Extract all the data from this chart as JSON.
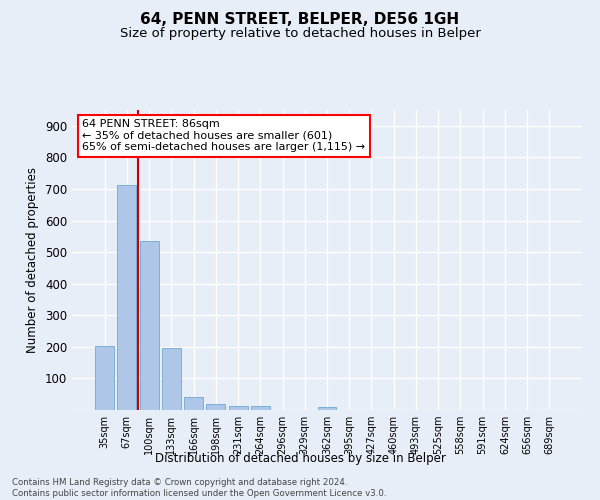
{
  "title": "64, PENN STREET, BELPER, DE56 1GH",
  "subtitle": "Size of property relative to detached houses in Belper",
  "xlabel": "Distribution of detached houses by size in Belper",
  "ylabel": "Number of detached properties",
  "categories": [
    "35sqm",
    "67sqm",
    "100sqm",
    "133sqm",
    "166sqm",
    "198sqm",
    "231sqm",
    "264sqm",
    "296sqm",
    "329sqm",
    "362sqm",
    "395sqm",
    "427sqm",
    "460sqm",
    "493sqm",
    "525sqm",
    "558sqm",
    "591sqm",
    "624sqm",
    "656sqm",
    "689sqm"
  ],
  "values": [
    203,
    714,
    535,
    195,
    42,
    19,
    14,
    12,
    0,
    0,
    9,
    0,
    0,
    0,
    0,
    0,
    0,
    0,
    0,
    0,
    0
  ],
  "bar_color": "#aec6e8",
  "bar_edge_color": "#6aaad4",
  "background_color": "#e8eef8",
  "grid_color": "#ffffff",
  "red_line_color": "#cc0000",
  "annotation_box_text": "64 PENN STREET: 86sqm\n← 35% of detached houses are smaller (601)\n65% of semi-detached houses are larger (1,115) →",
  "footnote": "Contains HM Land Registry data © Crown copyright and database right 2024.\nContains public sector information licensed under the Open Government Licence v3.0.",
  "ylim": [
    0,
    950
  ],
  "yticks": [
    0,
    100,
    200,
    300,
    400,
    500,
    600,
    700,
    800,
    900
  ]
}
